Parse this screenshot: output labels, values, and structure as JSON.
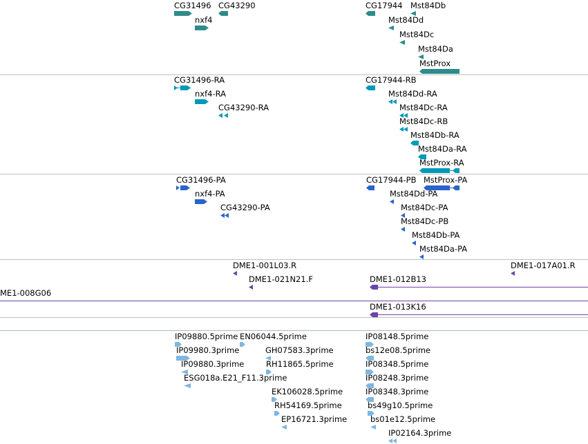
{
  "colors": {
    "gene": "#2e8b8b",
    "transcript": "#0099b8",
    "protein": "#2a64cc",
    "clone": "#6a45a8",
    "est": "#7fb7e0",
    "divider": "#bfbfbf"
  },
  "tracks": {
    "genes": [
      {
        "label": "CG31496",
        "strand": "+"
      },
      {
        "label": "CG43290",
        "strand": "-"
      },
      {
        "label": "nxf4",
        "strand": "+"
      },
      {
        "label": "CG17944",
        "strand": "-"
      },
      {
        "label": "Mst84Db",
        "strand": "-"
      },
      {
        "label": "Mst84Dd",
        "strand": "-"
      },
      {
        "label": "Mst84Dc",
        "strand": "-"
      },
      {
        "label": "Mst84Da",
        "strand": "-"
      },
      {
        "label": "MstProx",
        "strand": "-"
      }
    ],
    "transcripts": [
      {
        "label": "CG31496-RA"
      },
      {
        "label": "nxf4-RA"
      },
      {
        "label": "CG43290-RA"
      },
      {
        "label": "CG17944-RB"
      },
      {
        "label": "Mst84Dd-RA"
      },
      {
        "label": "Mst84Dc-RA"
      },
      {
        "label": "Mst84Dc-RB"
      },
      {
        "label": "Mst84Db-RA"
      },
      {
        "label": "Mst84Da-RA"
      },
      {
        "label": "MstProx-RA"
      }
    ],
    "proteins": [
      {
        "label": "CG31496-PA"
      },
      {
        "label": "nxf4-PA"
      },
      {
        "label": "CG43290-PA"
      },
      {
        "label": "CG17944-PB"
      },
      {
        "label": "MstProx-PA"
      },
      {
        "label": "Mst84Dd-PA"
      },
      {
        "label": "Mst84Dc-PA"
      },
      {
        "label": "Mst84Dc-PB"
      },
      {
        "label": "Mst84Db-PA"
      },
      {
        "label": "Mst84Da-PA"
      }
    ],
    "clones": [
      {
        "label": "DME1-001L03.R"
      },
      {
        "label": "DME1-017A01.R"
      },
      {
        "label": "DME1-021N21.F"
      },
      {
        "label": "DME1-012B13"
      },
      {
        "label": "ME1-008G06"
      },
      {
        "label": "DME1-013K16"
      }
    ],
    "ests": [
      {
        "label": "IP09880.5prime"
      },
      {
        "label": "EN06044.5prime"
      },
      {
        "label": "IP09980.3prime"
      },
      {
        "label": "GH07583.3prime"
      },
      {
        "label": "IP09880.3prime"
      },
      {
        "label": "RH11865.5prime"
      },
      {
        "label": "ESG018a.E21_F11.3prime"
      },
      {
        "label": "EK106028.5prime"
      },
      {
        "label": "RH54169.5prime"
      },
      {
        "label": "EP16721.3prime"
      },
      {
        "label": "IP08148.5prime"
      },
      {
        "label": "bs12e08.5prime"
      },
      {
        "label": "IP08348.5prime"
      },
      {
        "label": "IP08248.3prime"
      },
      {
        "label": "IP08348.3prime"
      },
      {
        "label": "bs49g10.5prime"
      },
      {
        "label": "bs01e12.5prime"
      },
      {
        "label": "IP02164.3prime"
      }
    ]
  }
}
